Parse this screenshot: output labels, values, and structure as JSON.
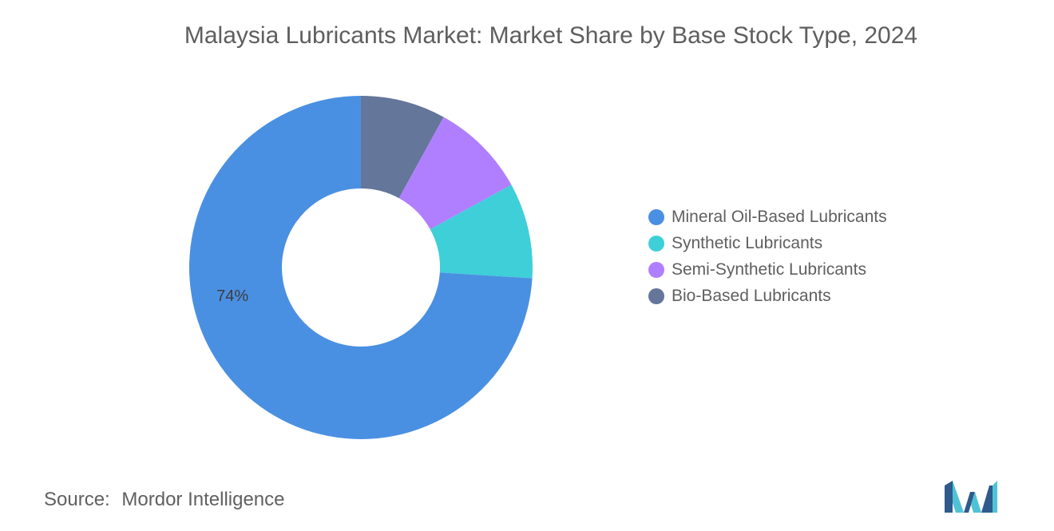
{
  "chart_data": {
    "type": "pie",
    "title": "Malaysia Lubricants Market: Market Share by Base Stock Type, 2024",
    "categories": [
      "Mineral Oil-Based Lubricants",
      "Synthetic Lubricants",
      "Semi-Synthetic Lubricants",
      "Bio-Based Lubricants"
    ],
    "values": [
      74,
      9,
      9,
      8
    ],
    "colors": [
      "#4a90e2",
      "#3ecfd9",
      "#b07fff",
      "#64769a"
    ],
    "data_labels": [
      "74%",
      "",
      "",
      ""
    ],
    "donut": true,
    "legend_position": "right"
  },
  "footer": {
    "source_prefix": "Source:",
    "source_name": "Mordor Intelligence"
  },
  "logo": {
    "icon": "mordor-intelligence-logo-icon",
    "colors": [
      "#2f5a8c",
      "#4fc3d4"
    ]
  }
}
